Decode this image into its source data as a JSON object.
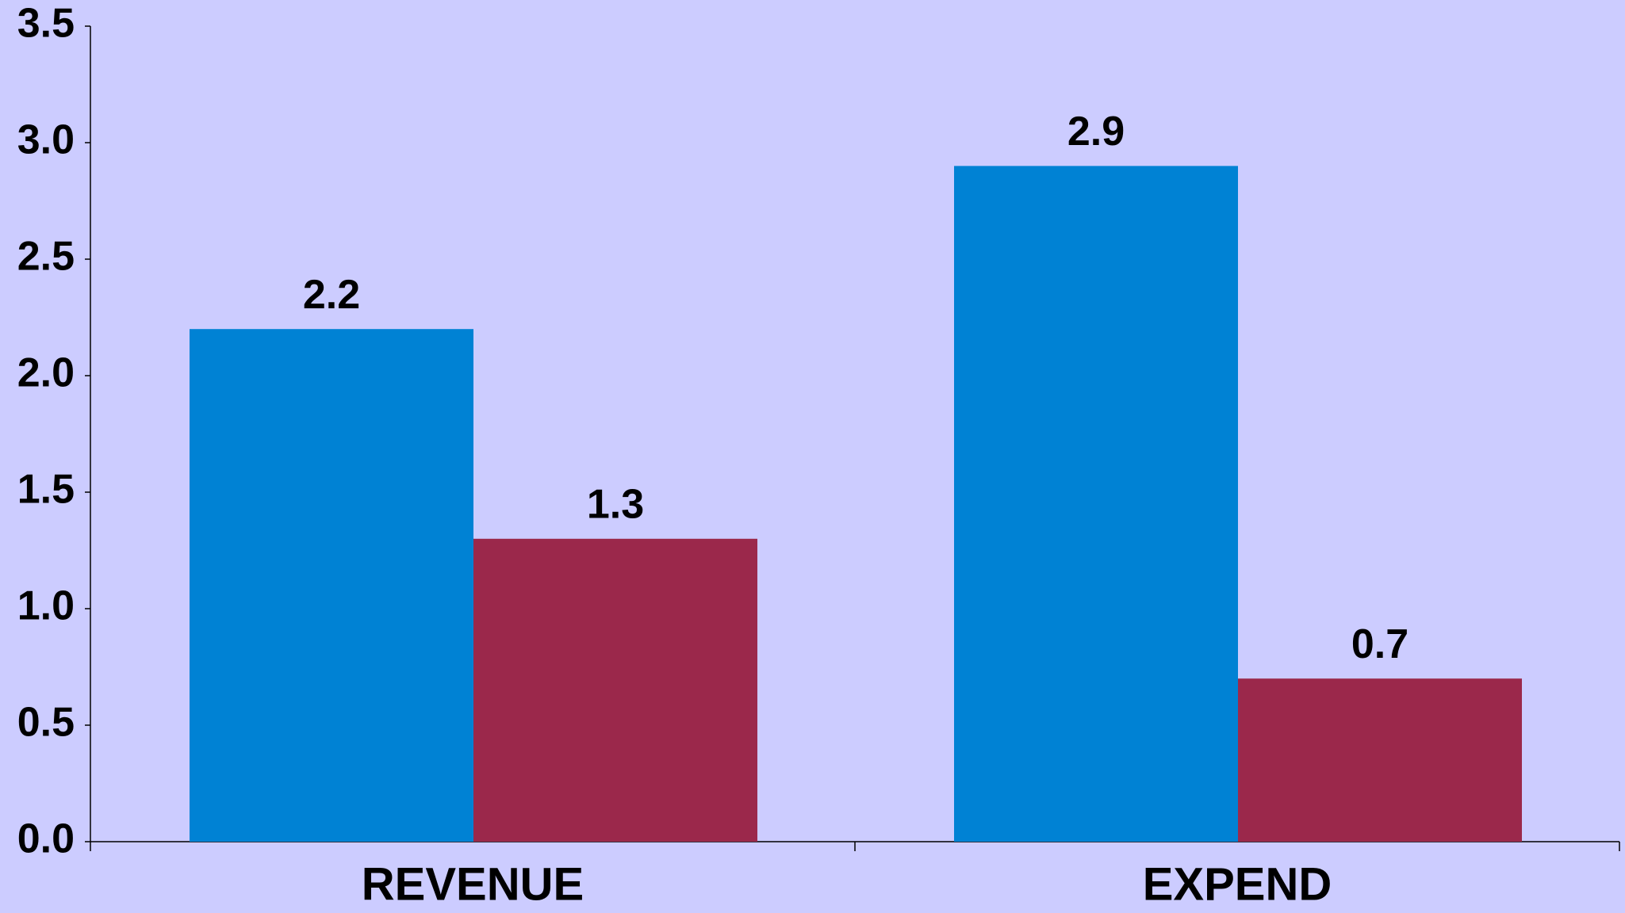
{
  "chart_data": {
    "type": "bar",
    "categories": [
      "REVENUE",
      "EXPEND"
    ],
    "series": [
      {
        "color": "#0082d4",
        "values": [
          2.2,
          2.9
        ]
      },
      {
        "color": "#9b284b",
        "values": [
          1.3,
          0.7
        ]
      }
    ],
    "ylim": [
      0,
      3.5
    ],
    "yticks": [
      {
        "value": 0,
        "label": "0.0"
      },
      0.5,
      {
        "value": 1,
        "label": "1.0"
      },
      1.5,
      {
        "value": 2,
        "label": "2.0"
      },
      2.5,
      {
        "value": 3,
        "label": "3.0"
      },
      3.5
    ],
    "background": "#ccccff"
  }
}
